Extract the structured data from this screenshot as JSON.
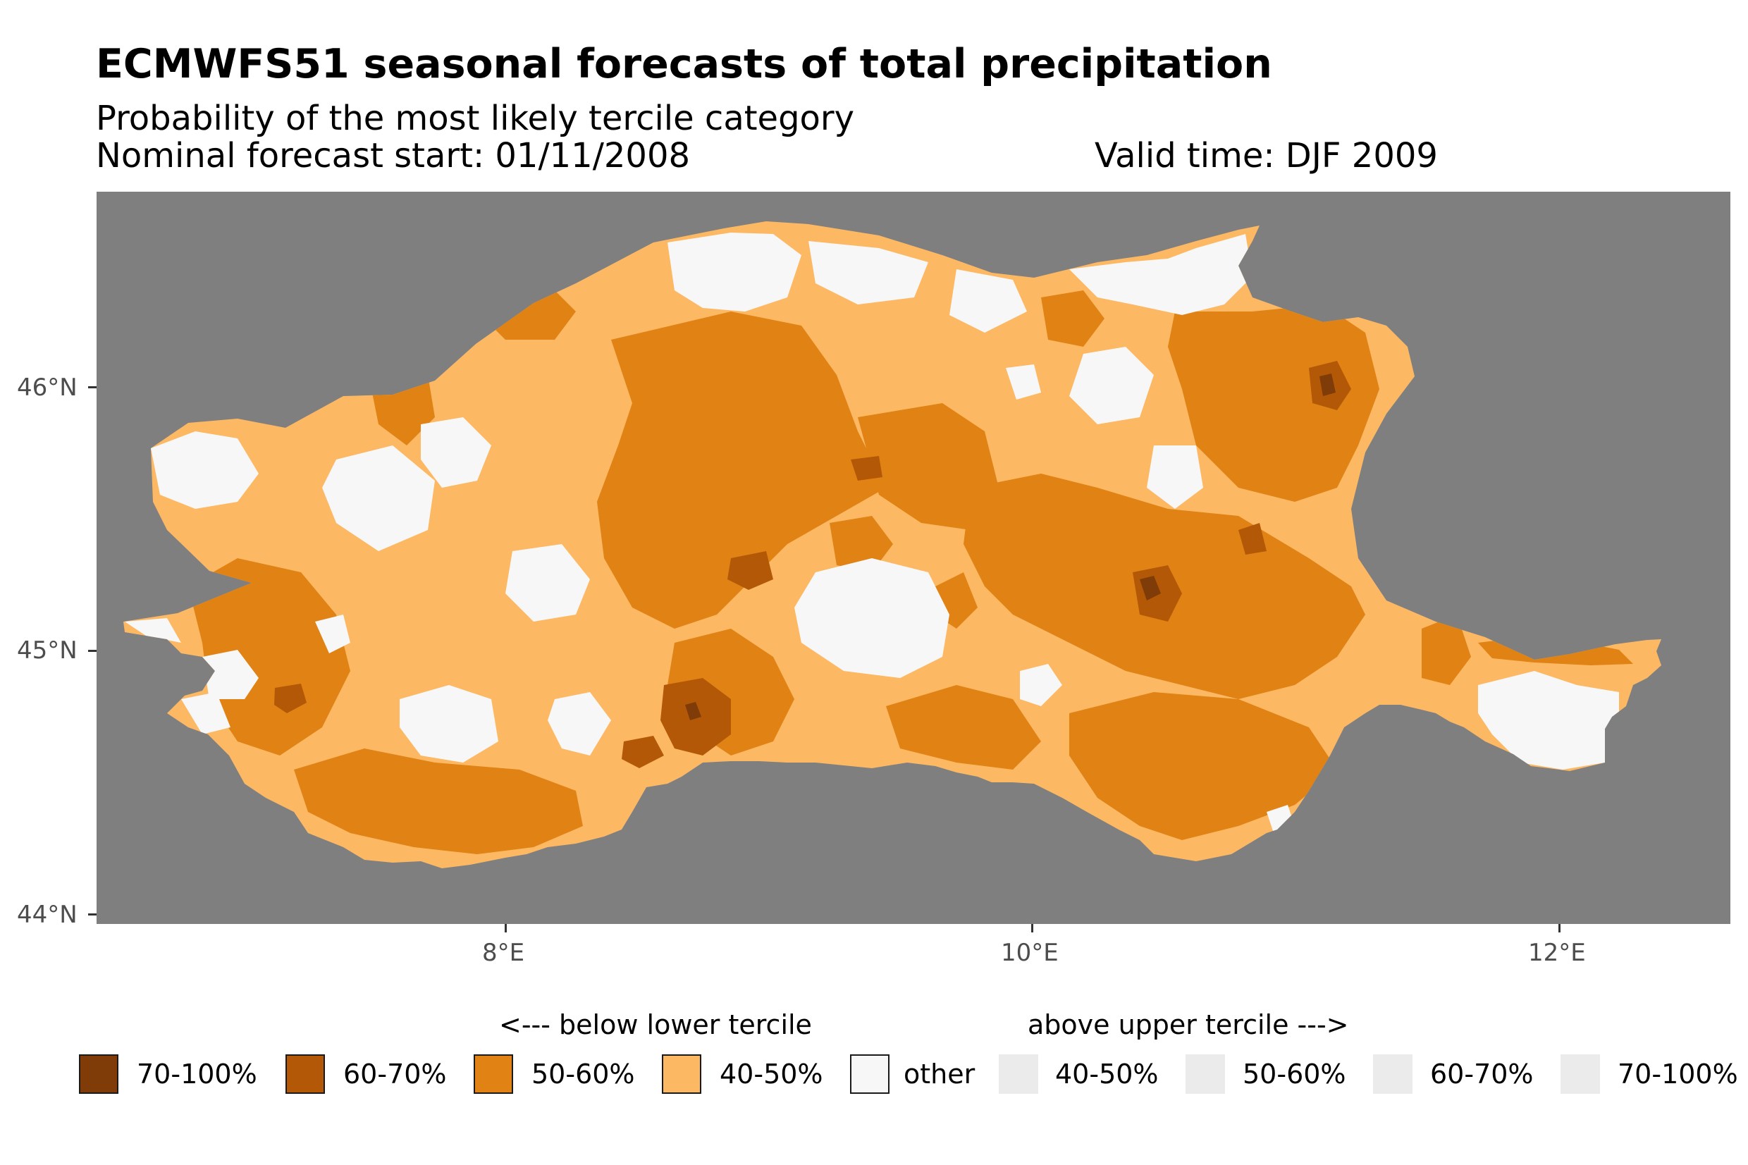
{
  "title": "ECMWFS51 seasonal forecasts of total precipitation",
  "subtitle": "Probability of the most likely tercile category",
  "forecast_start": "Nominal forecast start: 01/11/2008",
  "valid_time": "Valid time: DJF 2009",
  "map": {
    "region": "Po River basin, northern Italy",
    "background_color": "#7f7f7f",
    "y_ticks": [
      "44°N",
      "45°N",
      "46°N"
    ],
    "x_ticks": [
      "8°E",
      "10°E",
      "12°E"
    ],
    "longitude_range": [
      6.45,
      12.65
    ],
    "latitude_range": [
      43.95,
      46.65
    ]
  },
  "legend": {
    "below_heading": "<--- below lower tercile",
    "above_heading": "above upper tercile --->",
    "items": [
      {
        "label": "70-100%",
        "color": "#7f3b08",
        "bordered": true
      },
      {
        "label": "60-70%",
        "color": "#b35806",
        "bordered": true
      },
      {
        "label": "50-60%",
        "color": "#e08214",
        "bordered": true
      },
      {
        "label": "40-50%",
        "color": "#fdb863",
        "bordered": true
      },
      {
        "label": "other",
        "color": "#f7f7f7",
        "bordered": true
      },
      {
        "label": "40-50%",
        "color": "#ebebeb",
        "bordered": false
      },
      {
        "label": "50-60%",
        "color": "#ebebeb",
        "bordered": false
      },
      {
        "label": "60-70%",
        "color": "#ebebeb",
        "bordered": false
      },
      {
        "label": "70-100%",
        "color": "#ebebeb",
        "bordered": false
      }
    ]
  }
}
